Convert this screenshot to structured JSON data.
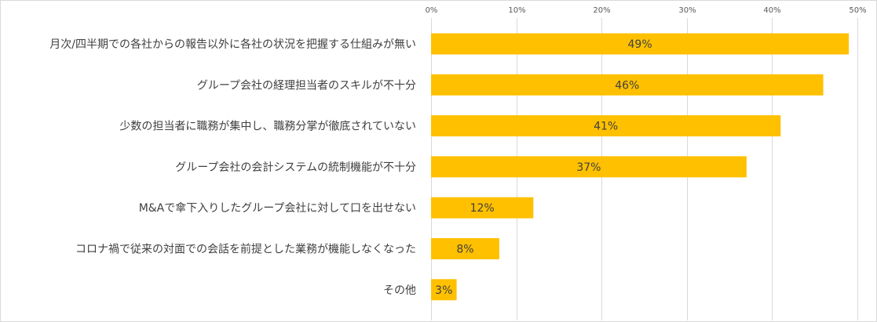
{
  "chart_data": {
    "type": "bar",
    "orientation": "horizontal",
    "categories": [
      "月次/四半期での各社からの報告以外に各社の状況を把握する仕組みが無い",
      "グループ会社の経理担当者のスキルが不十分",
      "少数の担当者に職務が集中し、職務分掌が徹底されていない",
      "グループ会社の会計システムの統制機能が不十分",
      "M&Aで傘下入りしたグループ会社に対して口を出せない",
      "コロナ禍で従来の対面での会話を前提とした業務が機能しなくなった",
      "その他"
    ],
    "values": [
      49,
      46,
      41,
      37,
      12,
      8,
      3
    ],
    "data_labels": [
      "49%",
      "46%",
      "41%",
      "37%",
      "12%",
      "8%",
      "3%"
    ],
    "xlim": [
      0,
      50
    ],
    "x_ticks": [
      0,
      10,
      20,
      30,
      40,
      50
    ],
    "x_tick_labels": [
      "0%",
      "10%",
      "20%",
      "30%",
      "40%",
      "50%"
    ],
    "x_axis_position": "top",
    "grid": true,
    "legend": "none",
    "bar_color": "#FFC000",
    "gridline_color": "#D9D9D9",
    "text_color": "#404040"
  }
}
